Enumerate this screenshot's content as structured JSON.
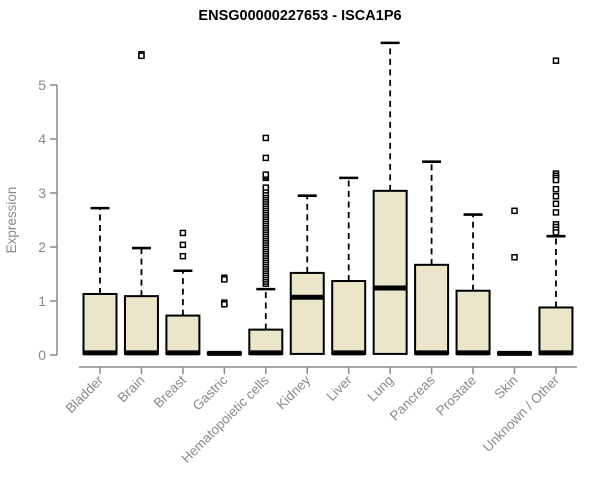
{
  "colors": {
    "box_fill": "#EBE5CA",
    "box_border": "#000000",
    "median": "#000000",
    "whisker": "#000000",
    "outlier": "#000000",
    "axis": "#8a8a8a",
    "tick_label": "#8a8a8a",
    "title": "#000000",
    "background": "#ffffff"
  },
  "chart_data": {
    "type": "boxplot",
    "title": "ENSG00000227653 - ISCA1P6",
    "ylabel": "Expression",
    "xlabel": "",
    "ylim": [
      0,
      5.8
    ],
    "yticks": [
      0,
      1,
      2,
      3,
      4,
      5
    ],
    "grid": false,
    "legend": false,
    "categories": [
      "Bladder",
      "Brain",
      "Breast",
      "Gastric",
      "Hematopoietic cells",
      "Kidney",
      "Liver",
      "Lung",
      "Pancreas",
      "Prostate",
      "Skin",
      "Unknown / Other"
    ],
    "series": [
      {
        "name": "Bladder",
        "q1": 0.02,
        "median": 0.04,
        "q3": 1.13,
        "whisker_low": 0.02,
        "whisker_high": 2.72,
        "outliers": []
      },
      {
        "name": "Brain",
        "q1": 0.02,
        "median": 0.04,
        "q3": 1.09,
        "whisker_low": 0.02,
        "whisker_high": 1.98,
        "outliers": [
          5.57,
          5.54
        ]
      },
      {
        "name": "Breast",
        "q1": 0.02,
        "median": 0.04,
        "q3": 0.73,
        "whisker_low": 0.02,
        "whisker_high": 1.56,
        "outliers": [
          2.26,
          2.04,
          1.83
        ]
      },
      {
        "name": "Gastric",
        "q1": 0.01,
        "median": 0.03,
        "q3": 0.05,
        "whisker_low": 0.01,
        "whisker_high": 0.05,
        "outliers": [
          1.43,
          1.4,
          0.97,
          0.94
        ]
      },
      {
        "name": "Hematopoietic cells",
        "q1": 0.02,
        "median": 0.04,
        "q3": 0.47,
        "whisker_low": 0.02,
        "whisker_high": 1.22,
        "outliers": [
          1.32,
          1.36,
          1.4,
          1.44,
          1.48,
          1.52,
          1.56,
          1.6,
          1.64,
          1.68,
          1.72,
          1.76,
          1.8,
          1.84,
          1.88,
          1.92,
          1.96,
          2.0,
          2.04,
          2.08,
          2.12,
          2.16,
          2.2,
          2.24,
          2.28,
          2.32,
          2.36,
          2.4,
          2.44,
          2.48,
          2.52,
          2.56,
          2.6,
          2.64,
          2.68,
          2.72,
          2.76,
          2.8,
          2.84,
          2.88,
          2.92,
          2.96,
          3.0,
          3.05,
          3.1,
          3.28,
          3.31,
          3.34,
          3.65,
          4.02
        ]
      },
      {
        "name": "Kidney",
        "q1": 0.02,
        "median": 1.07,
        "q3": 1.52,
        "whisker_low": 0.02,
        "whisker_high": 2.95,
        "outliers": []
      },
      {
        "name": "Liver",
        "q1": 0.02,
        "median": 0.04,
        "q3": 1.37,
        "whisker_low": 0.02,
        "whisker_high": 3.28,
        "outliers": []
      },
      {
        "name": "Lung",
        "q1": 0.02,
        "median": 1.24,
        "q3": 3.04,
        "whisker_low": 0.02,
        "whisker_high": 5.78,
        "outliers": []
      },
      {
        "name": "Pancreas",
        "q1": 0.02,
        "median": 0.04,
        "q3": 1.67,
        "whisker_low": 0.02,
        "whisker_high": 3.58,
        "outliers": []
      },
      {
        "name": "Prostate",
        "q1": 0.02,
        "median": 0.04,
        "q3": 1.19,
        "whisker_low": 0.02,
        "whisker_high": 2.6,
        "outliers": []
      },
      {
        "name": "Skin",
        "q1": 0.01,
        "median": 0.03,
        "q3": 0.05,
        "whisker_low": 0.01,
        "whisker_high": 0.05,
        "outliers": [
          2.67,
          1.81
        ]
      },
      {
        "name": "Unknown / Other",
        "q1": 0.02,
        "median": 0.04,
        "q3": 0.88,
        "whisker_low": 0.02,
        "whisker_high": 2.2,
        "outliers": [
          5.45,
          3.36,
          3.32,
          3.28,
          3.24,
          3.07,
          2.94,
          2.8,
          2.64,
          2.42,
          2.37,
          2.32,
          2.27
        ]
      }
    ]
  }
}
